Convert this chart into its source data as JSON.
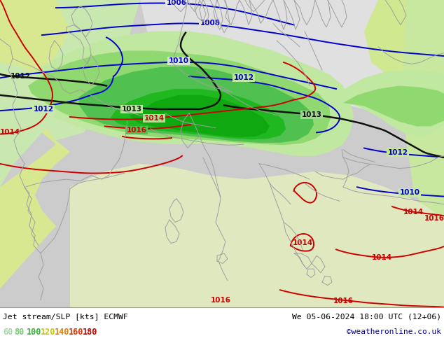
{
  "title_left": "Jet stream/SLP [kts] ECMWF",
  "title_right": "We 05-06-2024 18:00 UTC (12+06)",
  "credit": "©weatheronline.co.uk",
  "legend_values": [
    "60",
    "80",
    "100",
    "120",
    "140",
    "160",
    "180"
  ],
  "legend_colors": [
    "#aad4aa",
    "#78c878",
    "#32b432",
    "#c8c800",
    "#e08000",
    "#e03000",
    "#c00000"
  ],
  "figsize": [
    6.34,
    4.9
  ],
  "dpi": 100,
  "bg_light_gray": "#e8e8e8",
  "bg_white": "#f0f0f0",
  "jet_60": "#c8e8b0",
  "jet_80": "#90d870",
  "jet_100": "#40c040",
  "jet_120": "#00a000",
  "coast_color": "#a0a0a0",
  "isobar_blue": "#0000cc",
  "isobar_black": "#111111",
  "isobar_red": "#cc0000"
}
